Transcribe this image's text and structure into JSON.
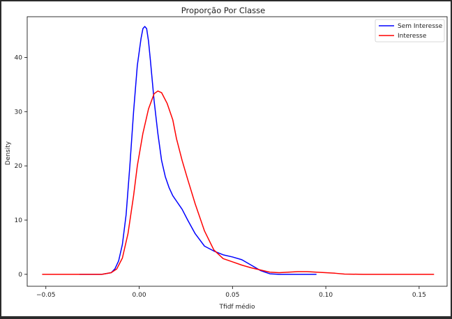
{
  "chart_data": {
    "type": "line",
    "title": "Proporção Por Classe",
    "xlabel": "Tfidf médio",
    "ylabel": "Density",
    "xlim": [
      -0.06,
      0.165
    ],
    "ylim": [
      -2.2,
      47.5
    ],
    "xticks": [
      -0.05,
      0.0,
      0.05,
      0.1,
      0.15
    ],
    "xtick_labels": [
      "−0.05",
      "0.00",
      "0.05",
      "0.10",
      "0.15"
    ],
    "yticks": [
      0,
      10,
      20,
      30,
      40
    ],
    "ytick_labels": [
      "0",
      "10",
      "20",
      "30",
      "40"
    ],
    "grid": false,
    "legend_position": "top-right",
    "series": [
      {
        "name": "Sem Interesse",
        "color": "#0000ff",
        "x": [
          -0.032,
          -0.02,
          -0.015,
          -0.013,
          -0.011,
          -0.009,
          -0.007,
          -0.005,
          -0.003,
          -0.001,
          0.001,
          0.002,
          0.003,
          0.004,
          0.005,
          0.006,
          0.008,
          0.01,
          0.012,
          0.014,
          0.016,
          0.018,
          0.02,
          0.023,
          0.026,
          0.03,
          0.035,
          0.04,
          0.045,
          0.05,
          0.055,
          0.06,
          0.065,
          0.07,
          0.075,
          0.08,
          0.09,
          0.095
        ],
        "y": [
          0.0,
          0.0,
          0.3,
          1.0,
          2.5,
          5.5,
          11.0,
          20.0,
          30.0,
          38.5,
          43.5,
          45.3,
          45.7,
          45.3,
          43.0,
          39.5,
          32.0,
          26.0,
          21.0,
          18.0,
          16.0,
          14.5,
          13.5,
          12.0,
          10.0,
          7.5,
          5.2,
          4.3,
          3.6,
          3.2,
          2.7,
          1.7,
          0.7,
          0.1,
          0.0,
          0.0,
          0.0,
          0.0
        ]
      },
      {
        "name": "Interesse",
        "color": "#ff0000",
        "x": [
          -0.052,
          -0.04,
          -0.02,
          -0.015,
          -0.012,
          -0.009,
          -0.006,
          -0.003,
          -0.001,
          0.002,
          0.005,
          0.008,
          0.01,
          0.012,
          0.015,
          0.018,
          0.02,
          0.023,
          0.026,
          0.03,
          0.035,
          0.04,
          0.045,
          0.05,
          0.055,
          0.06,
          0.065,
          0.07,
          0.075,
          0.08,
          0.085,
          0.09,
          0.095,
          0.1,
          0.105,
          0.11,
          0.12,
          0.13,
          0.14,
          0.158
        ],
        "y": [
          0.0,
          0.0,
          0.0,
          0.3,
          1.0,
          3.0,
          7.5,
          14.5,
          20.0,
          26.0,
          30.5,
          33.3,
          33.8,
          33.5,
          31.5,
          28.5,
          25.0,
          21.0,
          17.5,
          13.0,
          8.0,
          4.5,
          2.9,
          2.3,
          1.7,
          1.2,
          0.8,
          0.4,
          0.3,
          0.4,
          0.5,
          0.5,
          0.4,
          0.3,
          0.2,
          0.05,
          0.0,
          0.0,
          0.0,
          0.0
        ]
      }
    ]
  }
}
